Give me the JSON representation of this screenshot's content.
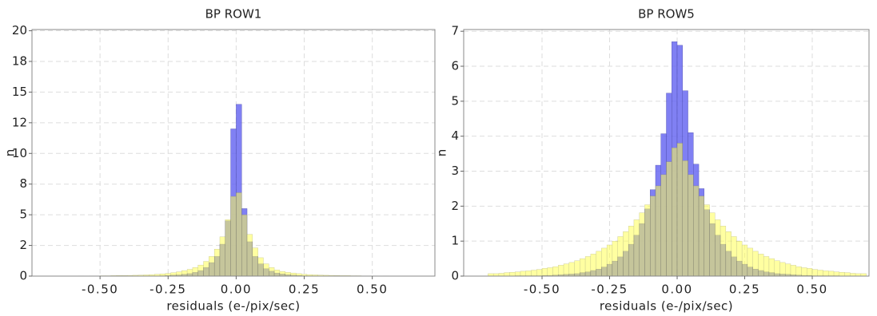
{
  "chart_data": [
    {
      "type": "histogram",
      "title": "BP ROW1",
      "xlabel": "residuals (e-/pix/sec)",
      "ylabel": "n",
      "grid": true,
      "xlim": [
        -0.75,
        0.73
      ],
      "ylim": [
        0,
        20.1
      ],
      "xticks": [
        {
          "value": -0.5,
          "label": "-0.50"
        },
        {
          "value": -0.25,
          "label": "-0.25"
        },
        {
          "value": 0,
          "label": "0.00"
        },
        {
          "value": 0.25,
          "label": "0.25"
        },
        {
          "value": 0.5,
          "label": "0.50"
        }
      ],
      "yticks": [
        0,
        {
          "value": 2.5,
          "label": "2"
        },
        5,
        {
          "value": 7.5,
          "label": "8"
        },
        10,
        {
          "value": 12.5,
          "label": "12"
        },
        15,
        {
          "value": 17.5,
          "label": "18"
        },
        20
      ],
      "bins": [
        -0.6,
        -0.58,
        -0.56,
        -0.54,
        -0.52,
        -0.5,
        -0.48,
        -0.46,
        -0.44,
        -0.42,
        -0.4,
        -0.38,
        -0.36,
        -0.34,
        -0.32,
        -0.3,
        -0.28,
        -0.26,
        -0.24,
        -0.22,
        -0.2,
        -0.18,
        -0.16,
        -0.14,
        -0.12,
        -0.1,
        -0.08,
        -0.06,
        -0.04,
        -0.02,
        0,
        0.02,
        0.04,
        0.06,
        0.08,
        0.1,
        0.12,
        0.14,
        0.16,
        0.18,
        0.2,
        0.22,
        0.24,
        0.26,
        0.28,
        0.3,
        0.32,
        0.34,
        0.36,
        0.38,
        0.4,
        0.42,
        0.44,
        0.46,
        0.48,
        0.5,
        0.52,
        0.54,
        0.56,
        0.58,
        0.6
      ],
      "series": [
        {
          "color": "#6a6af2",
          "values": [
            0,
            0,
            0,
            0,
            0,
            0,
            0,
            0,
            0,
            0,
            0,
            0,
            0,
            0,
            0,
            0.02,
            0.03,
            0.05,
            0.08,
            0.1,
            0.15,
            0.2,
            0.3,
            0.45,
            0.7,
            1.1,
            1.6,
            2.6,
            4.5,
            12,
            14,
            5.5,
            2.8,
            1.6,
            1.0,
            0.6,
            0.4,
            0.25,
            0.18,
            0.12,
            0.08,
            0.05,
            0.03,
            0.02,
            0,
            0,
            0,
            0,
            0,
            0,
            0,
            0,
            0,
            0,
            0,
            0,
            0,
            0,
            0,
            0
          ]
        },
        {
          "color": "#ffff55",
          "values": [
            0.01,
            0.02,
            0.01,
            0.02,
            0.02,
            0.03,
            0.03,
            0.04,
            0.05,
            0.05,
            0.06,
            0.07,
            0.08,
            0.1,
            0.12,
            0.15,
            0.18,
            0.22,
            0.28,
            0.35,
            0.45,
            0.55,
            0.7,
            0.9,
            1.2,
            1.6,
            2.2,
            3.2,
            4.6,
            6.5,
            6.8,
            5.0,
            3.4,
            2.3,
            1.5,
            1.0,
            0.7,
            0.5,
            0.38,
            0.3,
            0.25,
            0.2,
            0.15,
            0.12,
            0.1,
            0.08,
            0.07,
            0.06,
            0.05,
            0.04,
            0.04,
            0.03,
            0.03,
            0.02,
            0.02,
            0.02,
            0.01,
            0.02,
            0.01,
            0.01
          ]
        }
      ]
    },
    {
      "type": "histogram",
      "title": "BP ROW5",
      "xlabel": "residuals (e-/pix/sec)",
      "ylabel": "n",
      "grid": true,
      "xlim": [
        -0.79,
        0.71
      ],
      "ylim": [
        0,
        7.05
      ],
      "xticks": [
        {
          "value": -0.5,
          "label": "-0.50"
        },
        {
          "value": -0.25,
          "label": "-0.25"
        },
        {
          "value": 0,
          "label": "0.00"
        },
        {
          "value": 0.25,
          "label": "0.25"
        },
        {
          "value": 0.5,
          "label": "0.50"
        }
      ],
      "yticks": [
        0,
        1,
        2,
        3,
        4,
        5,
        6,
        7
      ],
      "bins": [
        -0.7,
        -0.68,
        -0.66,
        -0.64,
        -0.62,
        -0.6,
        -0.58,
        -0.56,
        -0.54,
        -0.52,
        -0.5,
        -0.48,
        -0.46,
        -0.44,
        -0.42,
        -0.4,
        -0.38,
        -0.36,
        -0.34,
        -0.32,
        -0.3,
        -0.28,
        -0.26,
        -0.24,
        -0.22,
        -0.2,
        -0.18,
        -0.16,
        -0.14,
        -0.12,
        -0.1,
        -0.08,
        -0.06,
        -0.04,
        -0.02,
        0,
        0.02,
        0.04,
        0.06,
        0.08,
        0.1,
        0.12,
        0.14,
        0.16,
        0.18,
        0.2,
        0.22,
        0.24,
        0.26,
        0.28,
        0.3,
        0.32,
        0.34,
        0.36,
        0.38,
        0.4,
        0.42,
        0.44,
        0.46,
        0.48,
        0.5,
        0.52,
        0.54,
        0.56,
        0.58,
        0.6,
        0.62,
        0.64,
        0.66,
        0.68,
        0.7
      ],
      "series": [
        {
          "color": "#6a6af2",
          "values": [
            0,
            0,
            0,
            0,
            0,
            0.01,
            0.01,
            0.01,
            0.01,
            0.01,
            0.02,
            0.02,
            0.03,
            0.04,
            0.05,
            0.06,
            0.07,
            0.1,
            0.12,
            0.16,
            0.2,
            0.26,
            0.34,
            0.43,
            0.55,
            0.71,
            0.91,
            1.17,
            1.5,
            1.92,
            2.47,
            3.17,
            4.07,
            5.23,
            6.7,
            6.6,
            5.3,
            4.1,
            3.2,
            2.5,
            1.9,
            1.5,
            1.17,
            0.91,
            0.71,
            0.55,
            0.43,
            0.34,
            0.26,
            0.2,
            0.16,
            0.12,
            0.1,
            0.07,
            0.06,
            0.05,
            0.04,
            0.03,
            0.02,
            0.02,
            0.01,
            0.01,
            0.01,
            0.01,
            0.01,
            0,
            0,
            0,
            0,
            0
          ]
        },
        {
          "color": "#ffff55",
          "values": [
            0.07,
            0.07,
            0.08,
            0.1,
            0.11,
            0.12,
            0.14,
            0.15,
            0.17,
            0.19,
            0.22,
            0.24,
            0.27,
            0.31,
            0.35,
            0.39,
            0.44,
            0.5,
            0.56,
            0.63,
            0.71,
            0.8,
            0.89,
            1.0,
            1.13,
            1.27,
            1.43,
            1.61,
            1.81,
            2.04,
            2.29,
            2.58,
            2.9,
            3.27,
            3.67,
            3.8,
            3.3,
            2.9,
            2.58,
            2.29,
            2.04,
            1.81,
            1.61,
            1.43,
            1.27,
            1.13,
            1.0,
            0.89,
            0.8,
            0.71,
            0.63,
            0.56,
            0.5,
            0.44,
            0.39,
            0.35,
            0.31,
            0.27,
            0.24,
            0.22,
            0.19,
            0.17,
            0.15,
            0.14,
            0.12,
            0.11,
            0.1,
            0.08,
            0.07,
            0.07
          ]
        }
      ]
    }
  ]
}
